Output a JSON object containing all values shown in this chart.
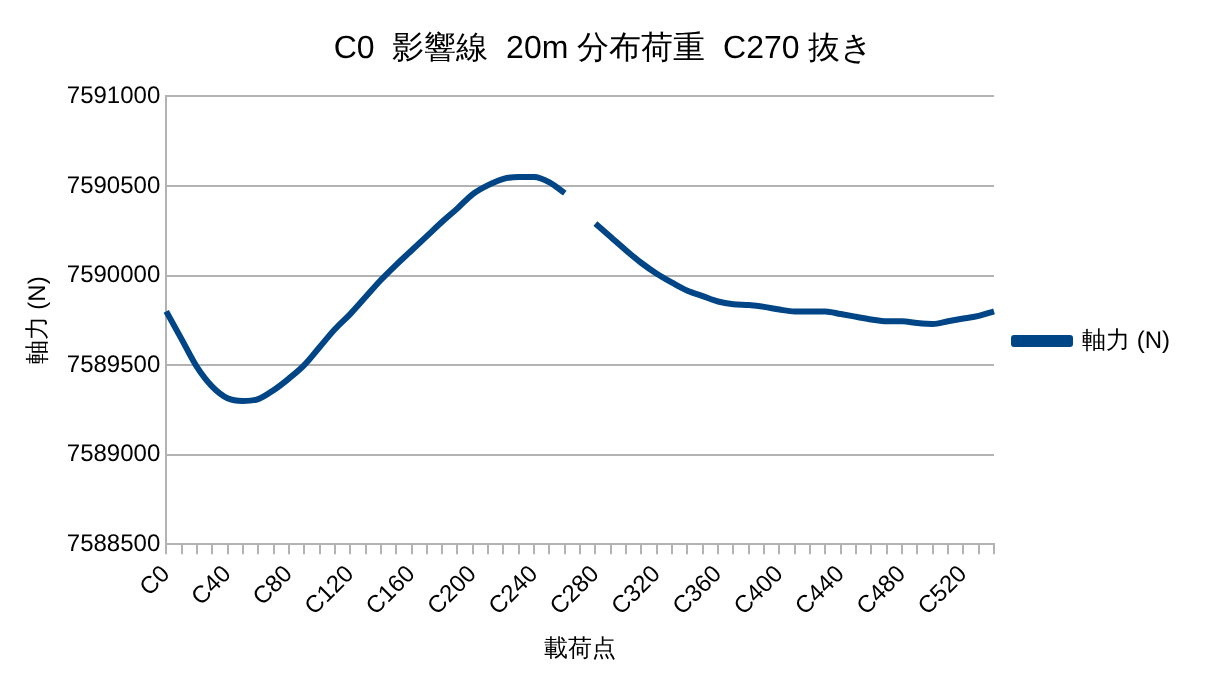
{
  "chart_data": {
    "type": "line",
    "title": "C0  影響線  20m 分布荷重  C270 抜き",
    "xlabel": "載荷点",
    "ylabel": "軸力 (N)",
    "categories": [
      "C0",
      null,
      null,
      null,
      "C40",
      null,
      null,
      null,
      "C80",
      null,
      null,
      null,
      "C120",
      null,
      null,
      null,
      "C160",
      null,
      null,
      null,
      "C200",
      null,
      null,
      null,
      "C240",
      null,
      null,
      null,
      "C280",
      null,
      null,
      null,
      "C320",
      null,
      null,
      null,
      "C360",
      null,
      null,
      null,
      "C400",
      null,
      null,
      null,
      "C440",
      null,
      null,
      null,
      "C480",
      null,
      null,
      null,
      "C520",
      null,
      null
    ],
    "series": [
      {
        "name": "軸力 (N)",
        "color": "#004586",
        "values": [
          7589800,
          7589645,
          7589490,
          7589380,
          7589315,
          7589300,
          7589310,
          7589360,
          7589425,
          7589500,
          7589600,
          7589700,
          7589785,
          7589880,
          7589975,
          7590060,
          7590140,
          7590220,
          7590300,
          7590375,
          7590455,
          7590505,
          7590540,
          7590550,
          7590550,
          7590520,
          7590460,
          null,
          7590290,
          7590215,
          7590140,
          7590070,
          7590010,
          7589960,
          7589915,
          7589885,
          7589855,
          7589840,
          7589835,
          7589825,
          7589810,
          7589800,
          7589800,
          7589800,
          7589785,
          7589770,
          7589755,
          7589745,
          7589745,
          7589735,
          7589730,
          7589745,
          7589760,
          7589775,
          7589800
        ]
      }
    ],
    "ylim": [
      7588500,
      7591000
    ],
    "yticks": [
      7588500,
      7589000,
      7589500,
      7590000,
      7590500,
      7591000
    ],
    "grid": "y",
    "legend": "right",
    "marker": "none",
    "line_style": "solid"
  }
}
